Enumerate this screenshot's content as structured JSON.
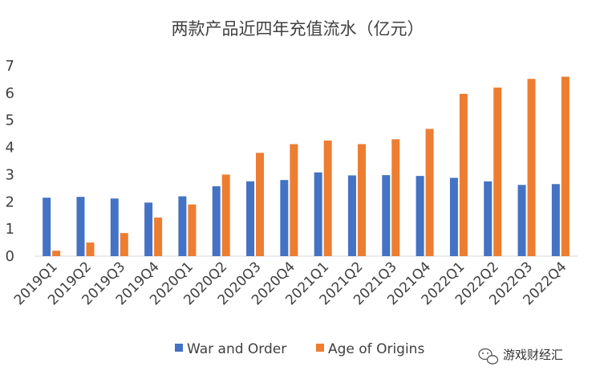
{
  "chart_data": {
    "type": "bar",
    "title": "两款产品近四年充值流水（亿元）",
    "categories": [
      "2019Q1",
      "2019Q2",
      "2019Q3",
      "2019Q4",
      "2020Q1",
      "2020Q2",
      "2020Q3",
      "2020Q4",
      "2021Q1",
      "2021Q2",
      "2021Q3",
      "2021Q4",
      "2022Q1",
      "2022Q2",
      "2022Q3",
      "2022Q4"
    ],
    "series": [
      {
        "name": "War and Order",
        "color": "#4472c4",
        "values": [
          2.15,
          2.18,
          2.12,
          1.97,
          2.2,
          2.57,
          2.75,
          2.8,
          3.08,
          2.97,
          2.98,
          2.95,
          2.88,
          2.75,
          2.62,
          2.65
        ]
      },
      {
        "name": "Age of Origins",
        "color": "#ed7d31",
        "values": [
          0.2,
          0.5,
          0.85,
          1.42,
          1.9,
          3.0,
          3.8,
          4.12,
          4.25,
          4.12,
          4.3,
          4.68,
          5.97,
          6.2,
          6.52,
          6.6
        ]
      }
    ],
    "yticks": [
      "0",
      "1",
      "2",
      "3",
      "4",
      "5",
      "6",
      "7"
    ],
    "ylim": [
      0,
      7
    ],
    "xlabel": "",
    "ylabel": "",
    "legend_position": "bottom",
    "grid": false
  },
  "watermark": {
    "text": "游戏财经汇",
    "icon": "wechat-icon"
  }
}
